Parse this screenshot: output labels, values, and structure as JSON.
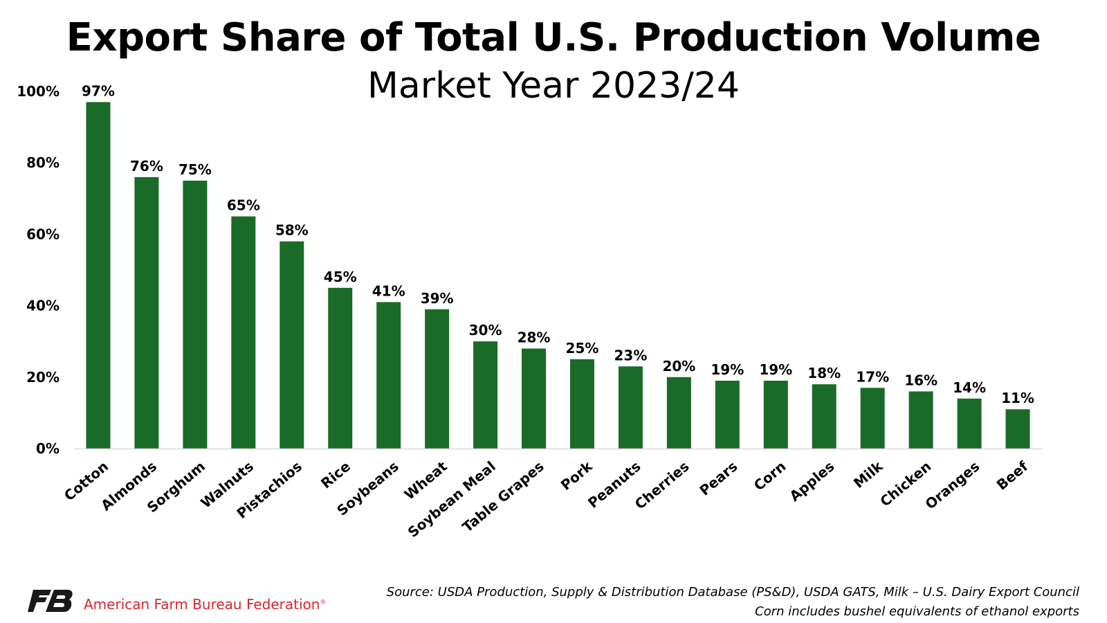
{
  "title": "Export Share of Total U.S. Production Volume",
  "subtitle": "Market Year 2023/24",
  "colors": {
    "bar": "#1a6b27",
    "axis": "#d9d9d9",
    "brand_red": "#d7262e",
    "logo": "#1a1a1a"
  },
  "chart_data": {
    "type": "bar",
    "title": "Export Share of Total U.S. Production Volume",
    "subtitle": "Market Year 2023/24",
    "categories": [
      "Cotton",
      "Almonds",
      "Sorghum",
      "Walnuts",
      "Pistachios",
      "Rice",
      "Soybeans",
      "Wheat",
      "Soybean Meal",
      "Table Grapes",
      "Pork",
      "Peanuts",
      "Cherries",
      "Pears",
      "Corn",
      "Apples",
      "Milk",
      "Chicken",
      "Oranges",
      "Beef"
    ],
    "values": [
      97,
      76,
      75,
      65,
      58,
      45,
      41,
      39,
      30,
      28,
      25,
      23,
      20,
      19,
      19,
      18,
      17,
      16,
      14,
      11
    ],
    "data_labels": [
      "97%",
      "76%",
      "75%",
      "65%",
      "58%",
      "45%",
      "41%",
      "39%",
      "30%",
      "28%",
      "25%",
      "23%",
      "20%",
      "19%",
      "19%",
      "18%",
      "17%",
      "16%",
      "14%",
      "11%"
    ],
    "yticks": [
      "0%",
      "20%",
      "40%",
      "60%",
      "80%",
      "100%"
    ],
    "ylim": [
      0,
      100
    ],
    "xlabel": "",
    "ylabel": "",
    "grid": false,
    "legend": "none"
  },
  "footer": {
    "org_name": "American Farm Bureau Federation",
    "registered_mark": "®",
    "logo_icon": "afbf-logo-icon",
    "source_line1": "Source: USDA Production, Supply & Distribution Database (PS&D), USDA GATS, Milk – U.S. Dairy Export Council",
    "source_line2": "Corn includes bushel equivalents of ethanol exports"
  }
}
